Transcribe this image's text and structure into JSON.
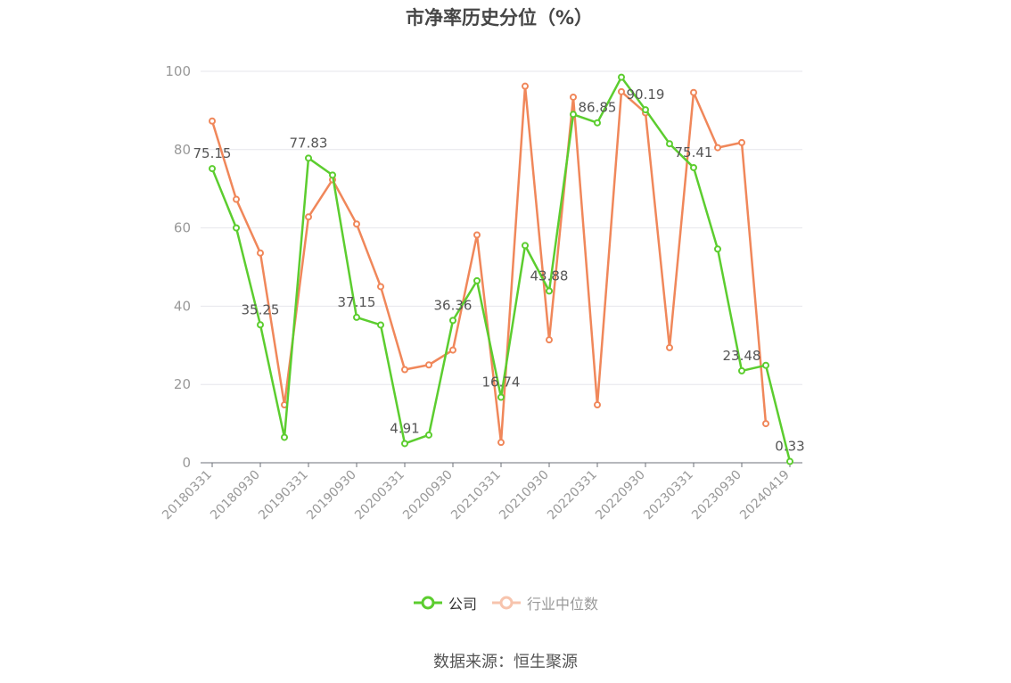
{
  "title": "市净率历史分位（%）",
  "source": "数据来源：恒生聚源",
  "colors": {
    "company": "#5ccd2f",
    "industry": "#f0875a",
    "grid": "#e6e6eb",
    "axis": "#999999",
    "label": "#555555"
  },
  "chart_data": {
    "type": "line",
    "ylim": [
      0,
      100
    ],
    "yticks": [
      0,
      20,
      40,
      60,
      80,
      100
    ],
    "categories": [
      "20180331",
      "20180630",
      "20180930",
      "20181231",
      "20190331",
      "20190630",
      "20190930",
      "20191231",
      "20200331",
      "20200630",
      "20200930",
      "20201231",
      "20210331",
      "20210630",
      "20210930",
      "20211231",
      "20220331",
      "20220630",
      "20220930",
      "20221231",
      "20230331",
      "20230630",
      "20230930",
      "20231231",
      "20240419"
    ],
    "xtick_labels": [
      "20180331",
      "20180930",
      "20190331",
      "20190930",
      "20200331",
      "20200930",
      "20210331",
      "20210930",
      "20220331",
      "20220930",
      "20230331",
      "20230930",
      "20240419"
    ],
    "series": [
      {
        "name": "公司",
        "color": "#5ccd2f",
        "values": [
          75.15,
          60,
          35.25,
          6.5,
          77.83,
          73.5,
          37.15,
          35.2,
          4.91,
          7.1,
          36.36,
          46.5,
          16.74,
          55.5,
          43.88,
          89,
          86.85,
          98.5,
          90.19,
          81.5,
          75.41,
          54.6,
          23.48,
          24.9,
          0.33
        ]
      },
      {
        "name": "行业中位数",
        "color": "#f0875a",
        "values": [
          87.3,
          67.3,
          53.6,
          14.8,
          62.8,
          72.3,
          61,
          45,
          23.8,
          25,
          28.8,
          58.2,
          5.2,
          96.2,
          31.4,
          93.4,
          14.8,
          94.8,
          89.4,
          29.4,
          94.6,
          80.5,
          81.8,
          10,
          null
        ]
      }
    ],
    "data_labels": [
      {
        "index": 0,
        "text": "75.15"
      },
      {
        "index": 2,
        "text": "35.25"
      },
      {
        "index": 4,
        "text": "77.83"
      },
      {
        "index": 6,
        "text": "37.15"
      },
      {
        "index": 8,
        "text": "4.91"
      },
      {
        "index": 10,
        "text": "36.36"
      },
      {
        "index": 12,
        "text": "16.74"
      },
      {
        "index": 14,
        "text": "43.88"
      },
      {
        "index": 16,
        "text": "86.85"
      },
      {
        "index": 18,
        "text": "90.19"
      },
      {
        "index": 20,
        "text": "75.41"
      },
      {
        "index": 22,
        "text": "23.48"
      },
      {
        "index": 24,
        "text": "0.33"
      }
    ]
  }
}
